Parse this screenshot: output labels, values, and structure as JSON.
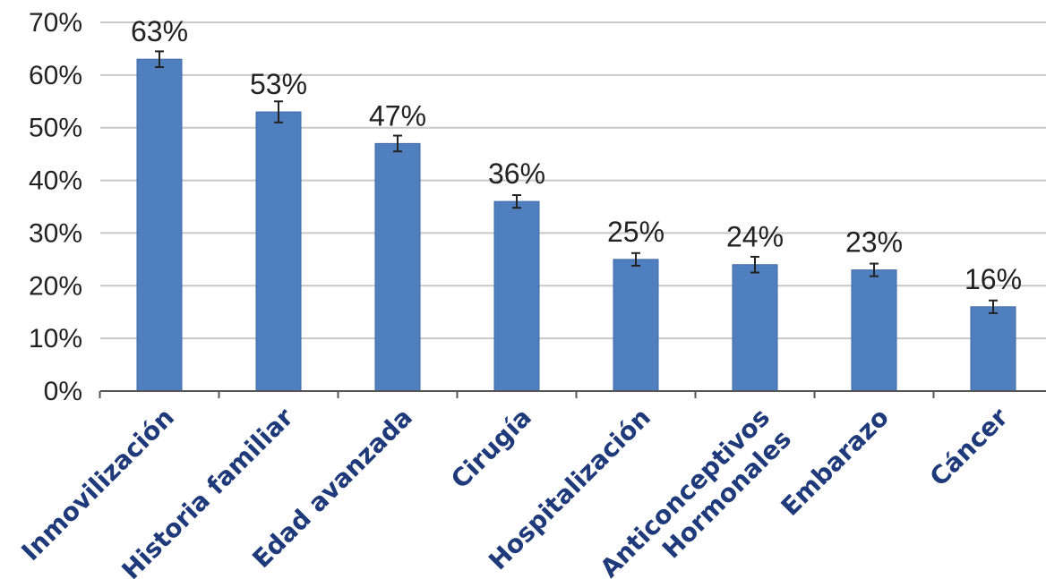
{
  "chart_data": {
    "type": "bar",
    "categories": [
      [
        "Inmovilización"
      ],
      [
        "Historia familiar"
      ],
      [
        "Edad avanzada"
      ],
      [
        "Cirugía"
      ],
      [
        "Hospitalización"
      ],
      [
        "Anticonceptivos",
        "Hormonales"
      ],
      [
        "Embarazo"
      ],
      [
        "Cáncer"
      ]
    ],
    "values": [
      63,
      53,
      47,
      36,
      25,
      24,
      23,
      16
    ],
    "value_labels": [
      "63%",
      "53%",
      "47%",
      "36%",
      "25%",
      "24%",
      "23%",
      "16%"
    ],
    "error_bars": [
      1.5,
      2,
      1.5,
      1.2,
      1.2,
      1.5,
      1.2,
      1.2
    ],
    "yticks": [
      0,
      10,
      20,
      30,
      40,
      50,
      60,
      70
    ],
    "ytick_labels": [
      "0%",
      "10%",
      "20%",
      "30%",
      "40%",
      "50%",
      "60%",
      "70%"
    ],
    "ylim": [
      0,
      70
    ],
    "grid": true,
    "bar_color": "#4f7fbf",
    "category_label_color": "#1f3a7a"
  }
}
